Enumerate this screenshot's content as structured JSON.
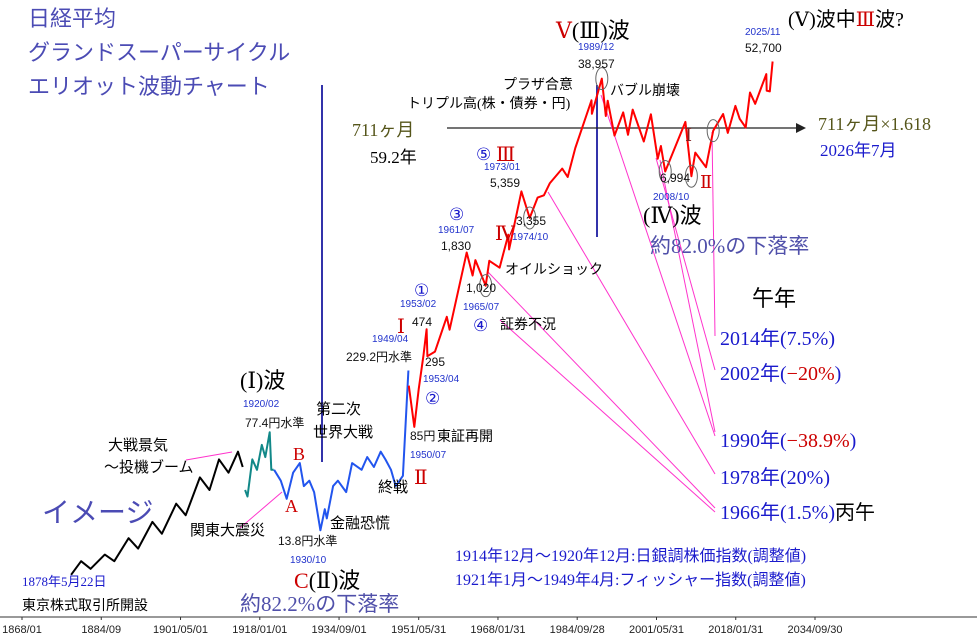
{
  "chart_data": {
    "type": "line",
    "yscale": "log",
    "xlim": [
      "1868/01",
      "2034/09/30"
    ],
    "ylim": [
      3,
      150000
    ],
    "xticks": [
      "1868/01",
      "1884/09",
      "1901/05/01",
      "1918/01/01",
      "1934/09/01",
      "1951/05/31",
      "1968/01/31",
      "1984/09/28",
      "2001/05/31",
      "2018/01/31",
      "2034/09/30"
    ],
    "series": [
      {
        "color": "#000000",
        "x": [
          "1878/05",
          "1880/06",
          "1882/06",
          "1885/06",
          "1887/06",
          "1890/06",
          "1892/06",
          "1895/06",
          "1897/06",
          "1900/06",
          "1902/06",
          "1905/06",
          "1907/06",
          "1909/06",
          "1911/06",
          "1913/06",
          "1914/06"
        ],
        "values": [
          6.3,
          8,
          7,
          9,
          8,
          12,
          10,
          16,
          13,
          22,
          18,
          35,
          28,
          48,
          38,
          55,
          42
        ],
        "value_labels": [
          null,
          null,
          null,
          null,
          null,
          null,
          null,
          null,
          null,
          null,
          null,
          null,
          null,
          null,
          null,
          null,
          null
        ]
      },
      {
        "color": "#118888",
        "x": [
          "1914/12",
          "1915/06",
          "1916/06",
          "1917/06",
          "1918/06",
          "1919/03",
          "1920/02",
          "1920/06",
          "1920/12"
        ],
        "values": [
          28,
          25,
          48,
          40,
          62,
          50,
          77.4,
          40,
          40
        ],
        "value_labels": [
          null,
          null,
          null,
          null,
          null,
          null,
          "77.4円水準",
          null,
          null
        ]
      },
      {
        "color": "#2255ee",
        "x": [
          "1921/01",
          "1922/06",
          "1923/09",
          "1925/01",
          "1926/06",
          "1927/04",
          "1928/06",
          "1929/06",
          "1930/10",
          "1931/09",
          "1932/02",
          "1933/06",
          "1934/06",
          "1936/03",
          "1937/06",
          "1939/06",
          "1940/08",
          "1942/01",
          "1943/06",
          "1944/06",
          "1945/08",
          "1946/08",
          "1948/02",
          "1949/04"
        ],
        "values": [
          40,
          33,
          24,
          38,
          45,
          30,
          33,
          27,
          13.8,
          20,
          17,
          30,
          33,
          27,
          45,
          40,
          50,
          42,
          55,
          48,
          40,
          30,
          36,
          229.2
        ],
        "value_labels": [
          null,
          null,
          null,
          null,
          null,
          null,
          null,
          null,
          "13.8円水準",
          null,
          null,
          null,
          null,
          null,
          null,
          null,
          null,
          null,
          null,
          null,
          null,
          null,
          null,
          "229.2円水準"
        ]
      },
      {
        "color": "#ff0000",
        "x": [
          "1949/05",
          "1950/07",
          "1951/06",
          "1952/06",
          "1953/02",
          "1953/04",
          "1954/11",
          "1957/05",
          "1957/12",
          "1961/07",
          "1962/10",
          "1963/05",
          "1965/07",
          "1966/04",
          "1968/06",
          "1970/04",
          "1970/06",
          "1973/01",
          "1974/10",
          "1976/06",
          "1977/10",
          "1979/01",
          "1981/08",
          "1982/10",
          "1984/05",
          "1987/10",
          "1987/11",
          "1989/12",
          "1990/10",
          "1991/03",
          "1992/08",
          "1994/06",
          "1995/06",
          "1996/06",
          "1998/10",
          "2000/04",
          "2001/09",
          "2002/05",
          "2003/04",
          "2007/07",
          "2008/10",
          "2009/08",
          "2011/11",
          "2013/05",
          "2015/06",
          "2016/06",
          "2018/01",
          "2018/12",
          "2020/03",
          "2021/02",
          "2022/03",
          "2023/07",
          "2024/07",
          "2024/08",
          "2025/04",
          "2025/11"
        ],
        "values": [
          176,
          85,
          165,
          300,
          474,
          295,
          320,
          590,
          470,
          1830,
          1220,
          1600,
          1020,
          1580,
          1400,
          2500,
          1930,
          5359,
          3355,
          4800,
          5000,
          6200,
          8000,
          6900,
          11500,
          26600,
          21000,
          38957,
          20200,
          26400,
          14300,
          21500,
          14500,
          22600,
          12900,
          20800,
          9500,
          11900,
          7600,
          18200,
          6994,
          10600,
          8200,
          15600,
          20900,
          15000,
          24100,
          19200,
          16500,
          30500,
          25000,
          33700,
          42200,
          31500,
          31100,
          52700
        ],
        "value_labels": [
          null,
          "85円",
          null,
          null,
          "474",
          "295",
          null,
          null,
          null,
          "1,830",
          null,
          null,
          "1,020",
          null,
          null,
          null,
          null,
          "5,359",
          "3,355",
          null,
          null,
          null,
          null,
          null,
          null,
          null,
          null,
          "38,957",
          null,
          null,
          null,
          null,
          null,
          null,
          null,
          null,
          null,
          null,
          null,
          null,
          "6,994",
          null,
          null,
          null,
          null,
          null,
          null,
          null,
          null,
          null,
          null,
          null,
          null,
          null,
          null,
          "52,700"
        ]
      }
    ],
    "annotations": [
      {
        "text": "日経平均"
      },
      {
        "text": "グランドスーパーサイクル"
      },
      {
        "text": "エリオット波動チャート"
      },
      {
        "text": "711ヶ月"
      },
      {
        "text": "59.2年"
      },
      {
        "parts": [
          "Ⅴ",
          "(Ⅲ)波"
        ]
      },
      {
        "parts": [
          "(Ⅴ)波中",
          "Ⅲ",
          "波?"
        ]
      },
      {
        "text": "プラザ合意"
      },
      {
        "text": "トリプル高(株・債券・円)"
      },
      {
        "text": "バブル崩壊"
      },
      {
        "text": "711ヶ月×1.618"
      },
      {
        "text": "2026年7月"
      },
      {
        "text": "(Ⅳ)波"
      },
      {
        "text": "約82.0%の下落率"
      },
      {
        "text": "午年"
      },
      {
        "text": "2014年(7.5%)"
      },
      {
        "parts": [
          "2002年(",
          "−20%",
          ")"
        ]
      },
      {
        "parts": [
          "1990年(",
          "−38.9%",
          ")"
        ]
      },
      {
        "text": "1978年(20%)"
      },
      {
        "parts": [
          "1966年(1.5%)",
          "丙午"
        ]
      },
      {
        "text": "オイルショック"
      },
      {
        "text": "証券不況"
      },
      {
        "text": "①"
      },
      {
        "text": "②"
      },
      {
        "text": "③"
      },
      {
        "text": "④"
      },
      {
        "text": "⑤"
      },
      {
        "text": "Ⅲ"
      },
      {
        "text": "Ⅳ"
      },
      {
        "text": "Ⅰ"
      },
      {
        "text": "Ⅱ"
      },
      {
        "text": "Ⅰ"
      },
      {
        "text": "Ⅱ"
      },
      {
        "text": "東証再開"
      },
      {
        "text": "第二次"
      },
      {
        "text": "世界大戦"
      },
      {
        "text": "終戦"
      },
      {
        "text": "(Ⅰ)波"
      },
      {
        "text": "B"
      },
      {
        "text": "A"
      },
      {
        "parts": [
          "C",
          "(Ⅱ)波"
        ]
      },
      {
        "text": "約82.2%の下落率"
      },
      {
        "text": "大戦景気"
      },
      {
        "text": "～投機ブーム"
      },
      {
        "text": "イメージ"
      },
      {
        "text": "関東大震災"
      },
      {
        "text": "金融恐慌"
      },
      {
        "text": "1878年5月22日"
      },
      {
        "text": "東京株式取引所開設"
      },
      {
        "text": "1914年12月～1920年12月:日銀調株価指数(調整値)"
      },
      {
        "text": "1921年1月～1949年4月:フィッシャー指数(調整値)"
      }
    ]
  }
}
